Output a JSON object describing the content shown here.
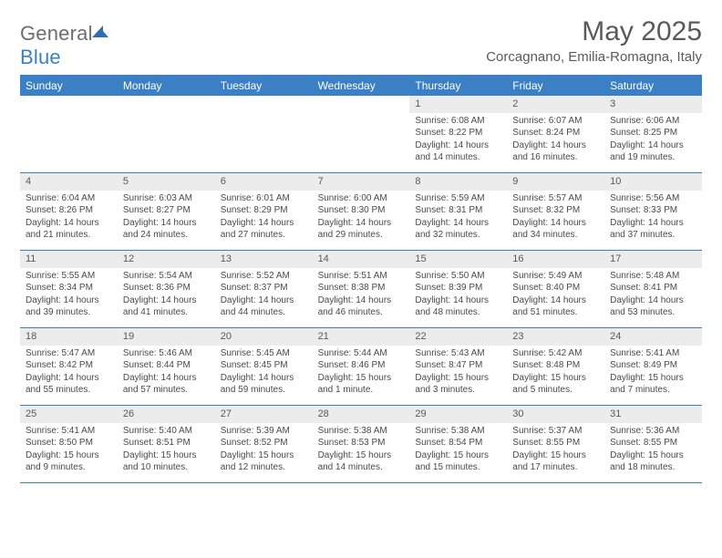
{
  "brand": {
    "word1": "General",
    "word2": "Blue"
  },
  "colors": {
    "accent": "#3b7fc4",
    "daynum_bg": "#ececec",
    "text": "#4a4a4a"
  },
  "title": "May 2025",
  "location": "Corcagnano, Emilia-Romagna, Italy",
  "day_names": [
    "Sunday",
    "Monday",
    "Tuesday",
    "Wednesday",
    "Thursday",
    "Friday",
    "Saturday"
  ],
  "weeks": [
    [
      {
        "n": "",
        "sr": "",
        "ss": "",
        "dl": "",
        "empty": true
      },
      {
        "n": "",
        "sr": "",
        "ss": "",
        "dl": "",
        "empty": true
      },
      {
        "n": "",
        "sr": "",
        "ss": "",
        "dl": "",
        "empty": true
      },
      {
        "n": "",
        "sr": "",
        "ss": "",
        "dl": "",
        "empty": true
      },
      {
        "n": "1",
        "sr": "Sunrise: 6:08 AM",
        "ss": "Sunset: 8:22 PM",
        "dl": "Daylight: 14 hours and 14 minutes."
      },
      {
        "n": "2",
        "sr": "Sunrise: 6:07 AM",
        "ss": "Sunset: 8:24 PM",
        "dl": "Daylight: 14 hours and 16 minutes."
      },
      {
        "n": "3",
        "sr": "Sunrise: 6:06 AM",
        "ss": "Sunset: 8:25 PM",
        "dl": "Daylight: 14 hours and 19 minutes."
      }
    ],
    [
      {
        "n": "4",
        "sr": "Sunrise: 6:04 AM",
        "ss": "Sunset: 8:26 PM",
        "dl": "Daylight: 14 hours and 21 minutes."
      },
      {
        "n": "5",
        "sr": "Sunrise: 6:03 AM",
        "ss": "Sunset: 8:27 PM",
        "dl": "Daylight: 14 hours and 24 minutes."
      },
      {
        "n": "6",
        "sr": "Sunrise: 6:01 AM",
        "ss": "Sunset: 8:29 PM",
        "dl": "Daylight: 14 hours and 27 minutes."
      },
      {
        "n": "7",
        "sr": "Sunrise: 6:00 AM",
        "ss": "Sunset: 8:30 PM",
        "dl": "Daylight: 14 hours and 29 minutes."
      },
      {
        "n": "8",
        "sr": "Sunrise: 5:59 AM",
        "ss": "Sunset: 8:31 PM",
        "dl": "Daylight: 14 hours and 32 minutes."
      },
      {
        "n": "9",
        "sr": "Sunrise: 5:57 AM",
        "ss": "Sunset: 8:32 PM",
        "dl": "Daylight: 14 hours and 34 minutes."
      },
      {
        "n": "10",
        "sr": "Sunrise: 5:56 AM",
        "ss": "Sunset: 8:33 PM",
        "dl": "Daylight: 14 hours and 37 minutes."
      }
    ],
    [
      {
        "n": "11",
        "sr": "Sunrise: 5:55 AM",
        "ss": "Sunset: 8:34 PM",
        "dl": "Daylight: 14 hours and 39 minutes."
      },
      {
        "n": "12",
        "sr": "Sunrise: 5:54 AM",
        "ss": "Sunset: 8:36 PM",
        "dl": "Daylight: 14 hours and 41 minutes."
      },
      {
        "n": "13",
        "sr": "Sunrise: 5:52 AM",
        "ss": "Sunset: 8:37 PM",
        "dl": "Daylight: 14 hours and 44 minutes."
      },
      {
        "n": "14",
        "sr": "Sunrise: 5:51 AM",
        "ss": "Sunset: 8:38 PM",
        "dl": "Daylight: 14 hours and 46 minutes."
      },
      {
        "n": "15",
        "sr": "Sunrise: 5:50 AM",
        "ss": "Sunset: 8:39 PM",
        "dl": "Daylight: 14 hours and 48 minutes."
      },
      {
        "n": "16",
        "sr": "Sunrise: 5:49 AM",
        "ss": "Sunset: 8:40 PM",
        "dl": "Daylight: 14 hours and 51 minutes."
      },
      {
        "n": "17",
        "sr": "Sunrise: 5:48 AM",
        "ss": "Sunset: 8:41 PM",
        "dl": "Daylight: 14 hours and 53 minutes."
      }
    ],
    [
      {
        "n": "18",
        "sr": "Sunrise: 5:47 AM",
        "ss": "Sunset: 8:42 PM",
        "dl": "Daylight: 14 hours and 55 minutes."
      },
      {
        "n": "19",
        "sr": "Sunrise: 5:46 AM",
        "ss": "Sunset: 8:44 PM",
        "dl": "Daylight: 14 hours and 57 minutes."
      },
      {
        "n": "20",
        "sr": "Sunrise: 5:45 AM",
        "ss": "Sunset: 8:45 PM",
        "dl": "Daylight: 14 hours and 59 minutes."
      },
      {
        "n": "21",
        "sr": "Sunrise: 5:44 AM",
        "ss": "Sunset: 8:46 PM",
        "dl": "Daylight: 15 hours and 1 minute."
      },
      {
        "n": "22",
        "sr": "Sunrise: 5:43 AM",
        "ss": "Sunset: 8:47 PM",
        "dl": "Daylight: 15 hours and 3 minutes."
      },
      {
        "n": "23",
        "sr": "Sunrise: 5:42 AM",
        "ss": "Sunset: 8:48 PM",
        "dl": "Daylight: 15 hours and 5 minutes."
      },
      {
        "n": "24",
        "sr": "Sunrise: 5:41 AM",
        "ss": "Sunset: 8:49 PM",
        "dl": "Daylight: 15 hours and 7 minutes."
      }
    ],
    [
      {
        "n": "25",
        "sr": "Sunrise: 5:41 AM",
        "ss": "Sunset: 8:50 PM",
        "dl": "Daylight: 15 hours and 9 minutes."
      },
      {
        "n": "26",
        "sr": "Sunrise: 5:40 AM",
        "ss": "Sunset: 8:51 PM",
        "dl": "Daylight: 15 hours and 10 minutes."
      },
      {
        "n": "27",
        "sr": "Sunrise: 5:39 AM",
        "ss": "Sunset: 8:52 PM",
        "dl": "Daylight: 15 hours and 12 minutes."
      },
      {
        "n": "28",
        "sr": "Sunrise: 5:38 AM",
        "ss": "Sunset: 8:53 PM",
        "dl": "Daylight: 15 hours and 14 minutes."
      },
      {
        "n": "29",
        "sr": "Sunrise: 5:38 AM",
        "ss": "Sunset: 8:54 PM",
        "dl": "Daylight: 15 hours and 15 minutes."
      },
      {
        "n": "30",
        "sr": "Sunrise: 5:37 AM",
        "ss": "Sunset: 8:55 PM",
        "dl": "Daylight: 15 hours and 17 minutes."
      },
      {
        "n": "31",
        "sr": "Sunrise: 5:36 AM",
        "ss": "Sunset: 8:55 PM",
        "dl": "Daylight: 15 hours and 18 minutes."
      }
    ]
  ]
}
